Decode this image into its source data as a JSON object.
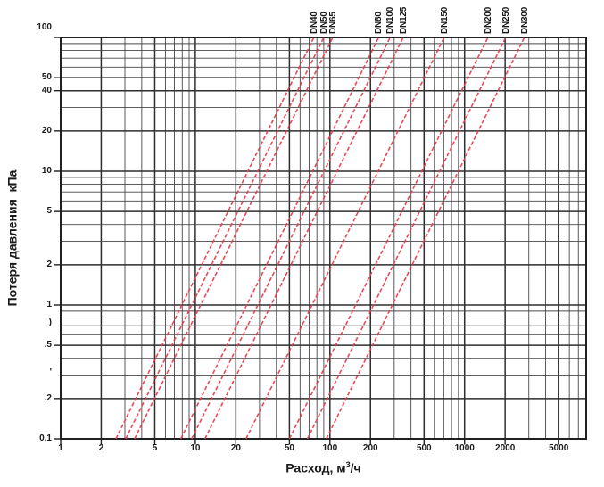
{
  "chart_data": {
    "type": "line",
    "title": "",
    "ylabel": "Потеря давления  кПа",
    "xlabel_prefix": "Расход, м",
    "xlabel_sup": "3",
    "xlabel_suffix": "/ч",
    "x_scale": "log",
    "y_scale": "log",
    "xlim": [
      1,
      8000
    ],
    "ylim": [
      0.1,
      100
    ],
    "grid": "full minor log grid on both axes",
    "legend_position": "labels rotated above top edge, one per curve",
    "x_ticks": [
      {
        "value": 1,
        "label": "1"
      },
      {
        "value": 2,
        "label": "2"
      },
      {
        "value": 5,
        "label": "5"
      },
      {
        "value": 10,
        "label": "10"
      },
      {
        "value": 20,
        "label": "20"
      },
      {
        "value": 50,
        "label": "50"
      },
      {
        "value": 100,
        "label": "100"
      },
      {
        "value": 200,
        "label": "200"
      },
      {
        "value": 500,
        "label": "500"
      },
      {
        "value": 1000,
        "label": "1000"
      },
      {
        "value": 2000,
        "label": "2000"
      },
      {
        "value": 5000,
        "label": "5000"
      }
    ],
    "y_ticks": [
      {
        "value": 100,
        "label": "100",
        "dy": -11
      },
      {
        "value": 50,
        "label": "50"
      },
      {
        "value": 40,
        "label": "40"
      },
      {
        "value": 20,
        "label": "20"
      },
      {
        "value": 10,
        "label": "10"
      },
      {
        "value": 5,
        "label": "5"
      },
      {
        "value": 2,
        "label": "2"
      },
      {
        "value": 1,
        "label": "1"
      },
      {
        "value": 0.74,
        "label": ")",
        "artifact": true
      },
      {
        "value": 0.5,
        "label": ".5"
      },
      {
        "value": 0.31,
        "label": "'",
        "artifact": true
      },
      {
        "value": 0.2,
        "label": ".2"
      },
      {
        "value": 0.1,
        "label": "0,1"
      }
    ],
    "series_style": "dashed",
    "relationship": "pressure drop proportional to flow squared (straight slope-2 lines in log-log)",
    "series": [
      {
        "label": "DN40",
        "points": [
          {
            "flow": 2.57,
            "dp": 0.1
          },
          {
            "flow": 76,
            "dp": 100
          }
        ]
      },
      {
        "label": "DN50",
        "points": [
          {
            "flow": 3.04,
            "dp": 0.1
          },
          {
            "flow": 90,
            "dp": 100
          }
        ]
      },
      {
        "label": "DN65",
        "points": [
          {
            "flow": 3.54,
            "dp": 0.1
          },
          {
            "flow": 105,
            "dp": 100
          }
        ]
      },
      {
        "label": "DN80",
        "points": [
          {
            "flow": 7.8,
            "dp": 0.1
          },
          {
            "flow": 230,
            "dp": 100
          }
        ]
      },
      {
        "label": "DN100",
        "points": [
          {
            "flow": 9.4,
            "dp": 0.1
          },
          {
            "flow": 280,
            "dp": 100
          }
        ]
      },
      {
        "label": "DN125",
        "points": [
          {
            "flow": 11.8,
            "dp": 0.1
          },
          {
            "flow": 350,
            "dp": 100
          }
        ]
      },
      {
        "label": "DN150",
        "points": [
          {
            "flow": 23.8,
            "dp": 0.1
          },
          {
            "flow": 705,
            "dp": 100
          }
        ]
      },
      {
        "label": "DN200",
        "points": [
          {
            "flow": 50,
            "dp": 0.1
          },
          {
            "flow": 1490,
            "dp": 100
          }
        ]
      },
      {
        "label": "DN250",
        "points": [
          {
            "flow": 68,
            "dp": 0.1
          },
          {
            "flow": 2020,
            "dp": 100
          }
        ]
      },
      {
        "label": "DN300",
        "points": [
          {
            "flow": 94,
            "dp": 0.1
          },
          {
            "flow": 2780,
            "dp": 100
          }
        ]
      }
    ],
    "colors": {
      "curve": "#e83a4b",
      "grid_minor": "#474747",
      "grid_major": "#2e2e2e",
      "border": "#202020",
      "text": "#1a1a1a",
      "background": "#ffffff"
    }
  }
}
